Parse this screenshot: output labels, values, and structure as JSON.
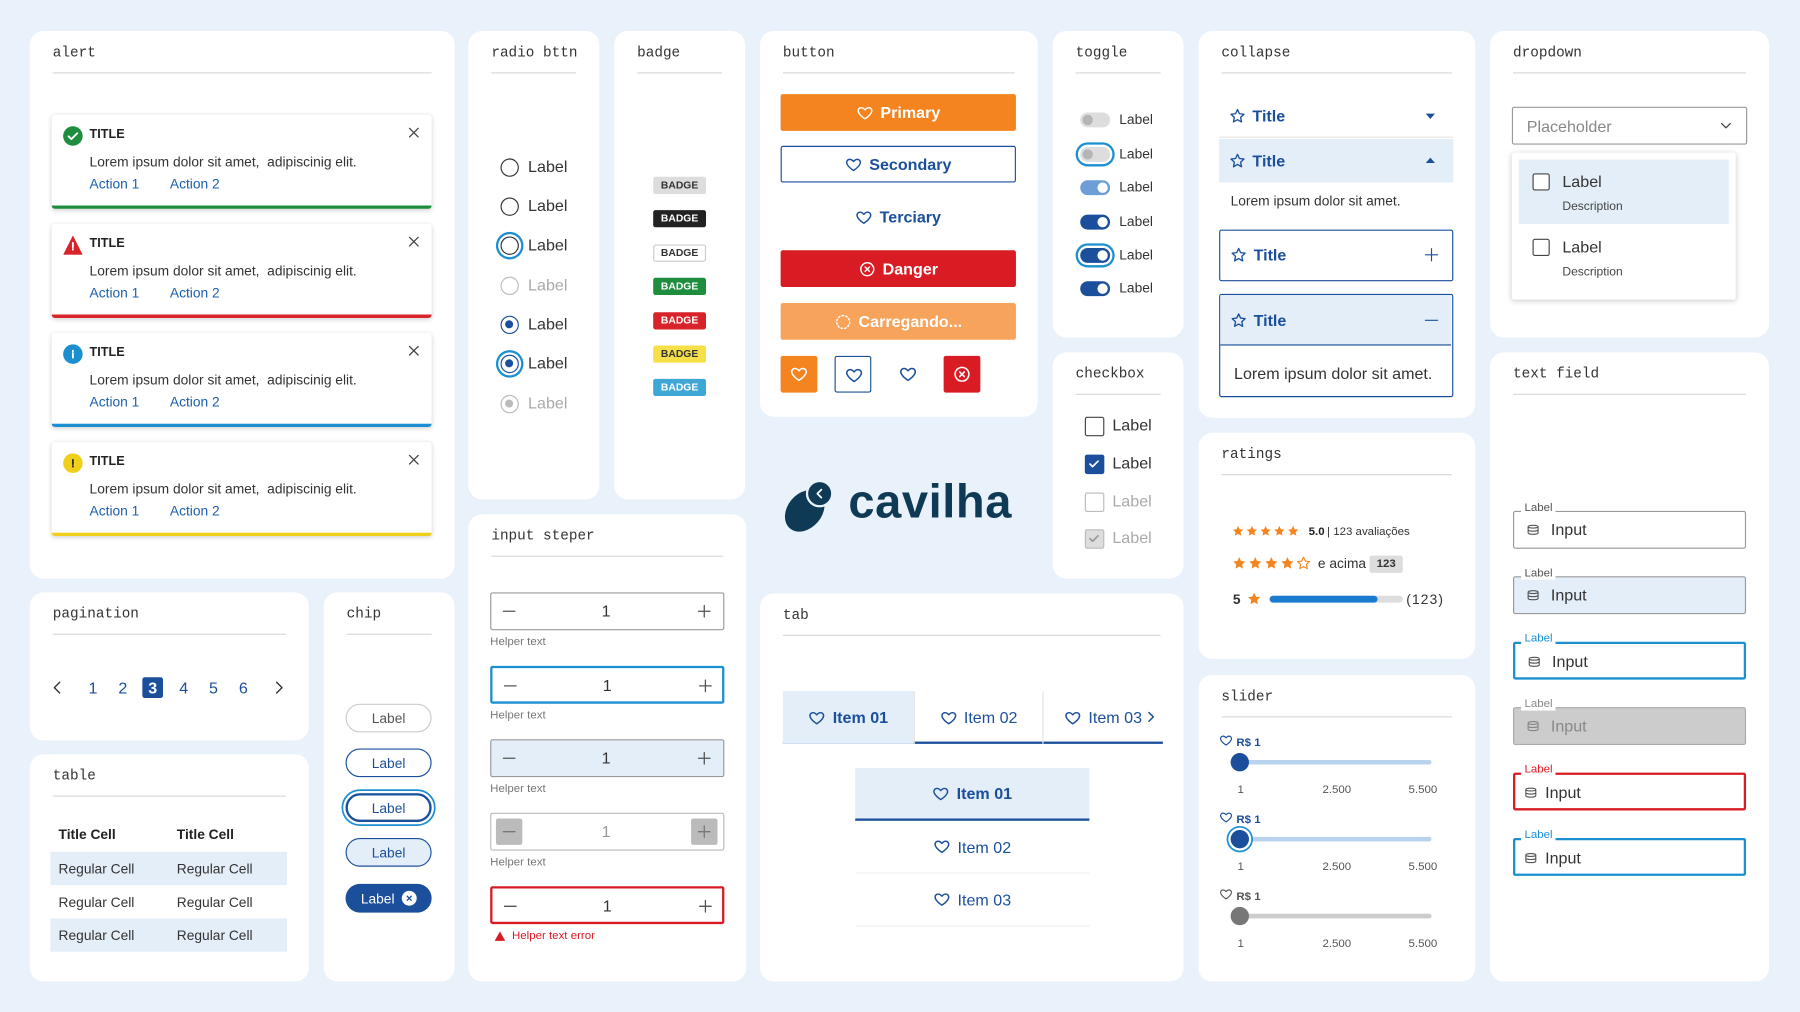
{
  "alert": {
    "title": "alert",
    "items": [
      {
        "title": "TITLE",
        "text": "Lorem ipsum dolor sit amet,  adipiscinig elit.",
        "actions": [
          "Action 1",
          "Action 2"
        ]
      },
      {
        "title": "TITLE",
        "text": "Lorem ipsum dolor sit amet,  adipiscinig elit.",
        "actions": [
          "Action 1",
          "Action 2"
        ]
      },
      {
        "title": "TITLE",
        "text": "Lorem ipsum dolor sit amet,  adipiscinig elit.",
        "actions": [
          "Action 1",
          "Action 2"
        ]
      },
      {
        "title": "TITLE",
        "text": "Lorem ipsum dolor sit amet,  adipiscinig elit.",
        "actions": [
          "Action 1",
          "Action 2"
        ]
      }
    ]
  },
  "radio": {
    "title": "radio bttn",
    "labels": [
      "Label",
      "Label",
      "Label",
      "Label",
      "Label",
      "Label",
      "Label"
    ]
  },
  "badge": {
    "title": "badge",
    "items": [
      "BADGE",
      "BADGE",
      "BADGE",
      "BADGE",
      "BADGE",
      "BADGE",
      "BADGE"
    ]
  },
  "button": {
    "title": "button",
    "labels": [
      "Primary",
      "Secondary",
      "Terciary",
      "Danger",
      "Carregando..."
    ]
  },
  "toggle": {
    "title": "toggle",
    "labels": [
      "Label",
      "Label",
      "Label",
      "Label",
      "Label",
      "Label"
    ]
  },
  "collapse": {
    "title": "collapse",
    "items": [
      "Title",
      "Title",
      "Title",
      "Title"
    ],
    "texts": [
      "Lorem ipsum dolor sit amet.",
      "Lorem ipsum dolor sit amet."
    ]
  },
  "dropdown": {
    "title": "dropdown",
    "placeholder": "Placeholder",
    "options": [
      {
        "label": "Label",
        "description": "Description"
      },
      {
        "label": "Label",
        "description": "Description"
      }
    ]
  },
  "checkbox": {
    "title": "checkbox",
    "labels": [
      "Label",
      "Label",
      "Label",
      "Label"
    ]
  },
  "logo": "cavilha",
  "ratings": {
    "title": "ratings",
    "score": "5.0",
    "reviews": "| 123 avaliações",
    "above": "e acima",
    "count_badge": 123,
    "level": 5,
    "total": "(123)"
  },
  "slider": {
    "title": "slider",
    "items": [
      {
        "label": "R$ 1",
        "min": 1,
        "mid": "2.500",
        "max": "5.500"
      },
      {
        "label": "R$ 1",
        "min": 1,
        "mid": "2.500",
        "max": "5.500"
      },
      {
        "label": "R$ 1",
        "min": 1,
        "mid": "2.500",
        "max": "5.500"
      }
    ]
  },
  "text_field": {
    "title": "text field",
    "fields": [
      {
        "label": "Label",
        "input": "Input"
      },
      {
        "label": "Label",
        "input": "Input"
      },
      {
        "label": "Label",
        "input": "Input"
      },
      {
        "label": "Label",
        "input": "Input"
      },
      {
        "label": "Label",
        "input": "Input"
      },
      {
        "label": "Label",
        "input": "Input"
      }
    ]
  },
  "pagination": {
    "title": "pagination",
    "pages": [
      1,
      2,
      3,
      4,
      5,
      6
    ]
  },
  "chip": {
    "title": "chip",
    "labels": [
      "Label",
      "Label",
      "Label",
      "Label",
      "Label"
    ]
  },
  "table": {
    "title": "table",
    "header": [
      "Title Cell",
      "Title Cell"
    ],
    "rows": [
      [
        "Regular Cell",
        "Regular Cell"
      ],
      [
        "Regular Cell",
        "Regular Cell"
      ],
      [
        "Regular Cell",
        "Regular Cell"
      ]
    ]
  },
  "input_stepper": {
    "title": "input steper",
    "items": [
      {
        "value": 1,
        "helper": "Helper text"
      },
      {
        "value": 1,
        "helper": "Helper text"
      },
      {
        "value": 1,
        "helper": "Helper text"
      },
      {
        "value": 1,
        "helper": "Helper text"
      },
      {
        "value": 1,
        "helper": "Helper text error"
      }
    ]
  },
  "tab": {
    "title": "tab",
    "items": [
      "Item 01",
      "Item 02",
      "Item 03"
    ],
    "vertical_items": [
      "Item 01",
      "Item 02",
      "Item 03"
    ]
  }
}
